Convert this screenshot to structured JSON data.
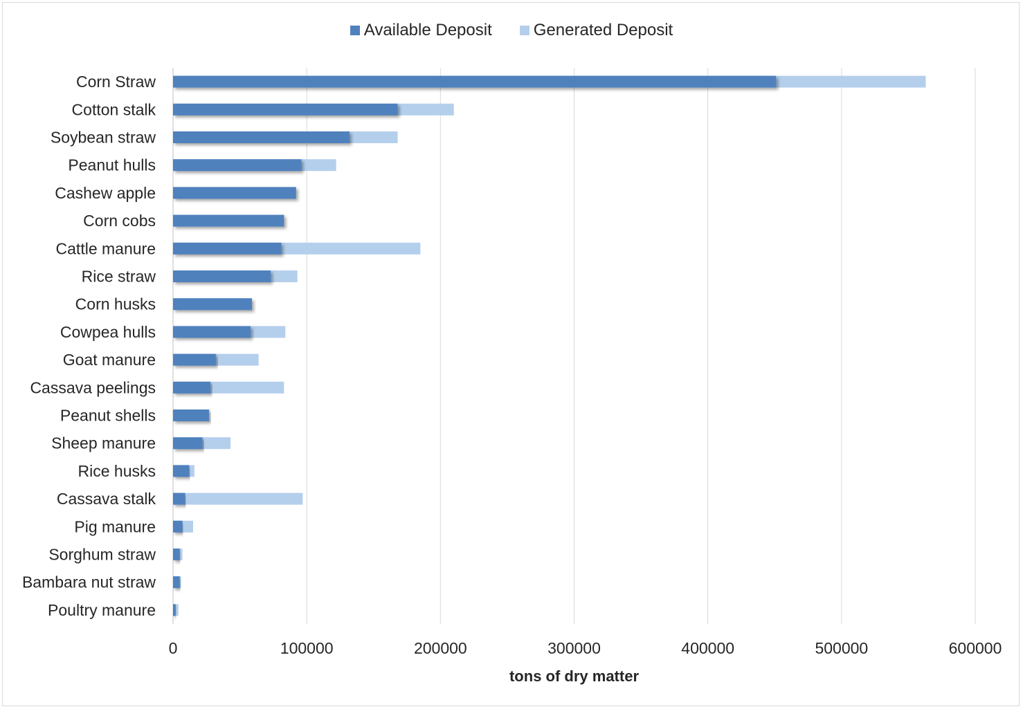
{
  "chart_data": {
    "type": "bar",
    "orientation": "horizontal",
    "stacking": "overlay",
    "title": "",
    "xlabel": "tons of dry matter",
    "ylabel": "",
    "xlim": [
      0,
      600000
    ],
    "x_ticks": [
      0,
      100000,
      200000,
      300000,
      400000,
      500000,
      600000
    ],
    "x_tick_labels": [
      "0",
      "100000",
      "200000",
      "300000",
      "400000",
      "500000",
      "600000"
    ],
    "grid": "vertical",
    "legend_position": "top-center",
    "categories": [
      "Corn Straw",
      "Cotton stalk",
      "Soybean straw",
      "Peanut hulls",
      "Cashew apple",
      "Corn cobs",
      "Cattle manure",
      "Rice straw",
      "Corn husks",
      "Cowpea hulls",
      "Goat manure",
      "Cassava peelings",
      "Peanut shells",
      "Sheep manure",
      "Rice husks",
      "Cassava stalk",
      "Pig manure",
      "Sorghum straw",
      "Bambara nut straw",
      "Poultry manure"
    ],
    "series": [
      {
        "name": "Available Deposit",
        "color": "#4f81bd",
        "values": [
          451000,
          168000,
          132000,
          96000,
          92000,
          83000,
          81000,
          73000,
          59000,
          58000,
          32000,
          28000,
          27000,
          22000,
          12000,
          9000,
          7000,
          5000,
          5000,
          2000
        ]
      },
      {
        "name": "Generated Deposit",
        "color": "#b4cfec",
        "values": [
          563000,
          210000,
          168000,
          122000,
          92000,
          83000,
          185000,
          93000,
          59000,
          84000,
          64000,
          83000,
          27000,
          43000,
          16000,
          97000,
          15000,
          7000,
          6000,
          4000
        ]
      }
    ]
  }
}
